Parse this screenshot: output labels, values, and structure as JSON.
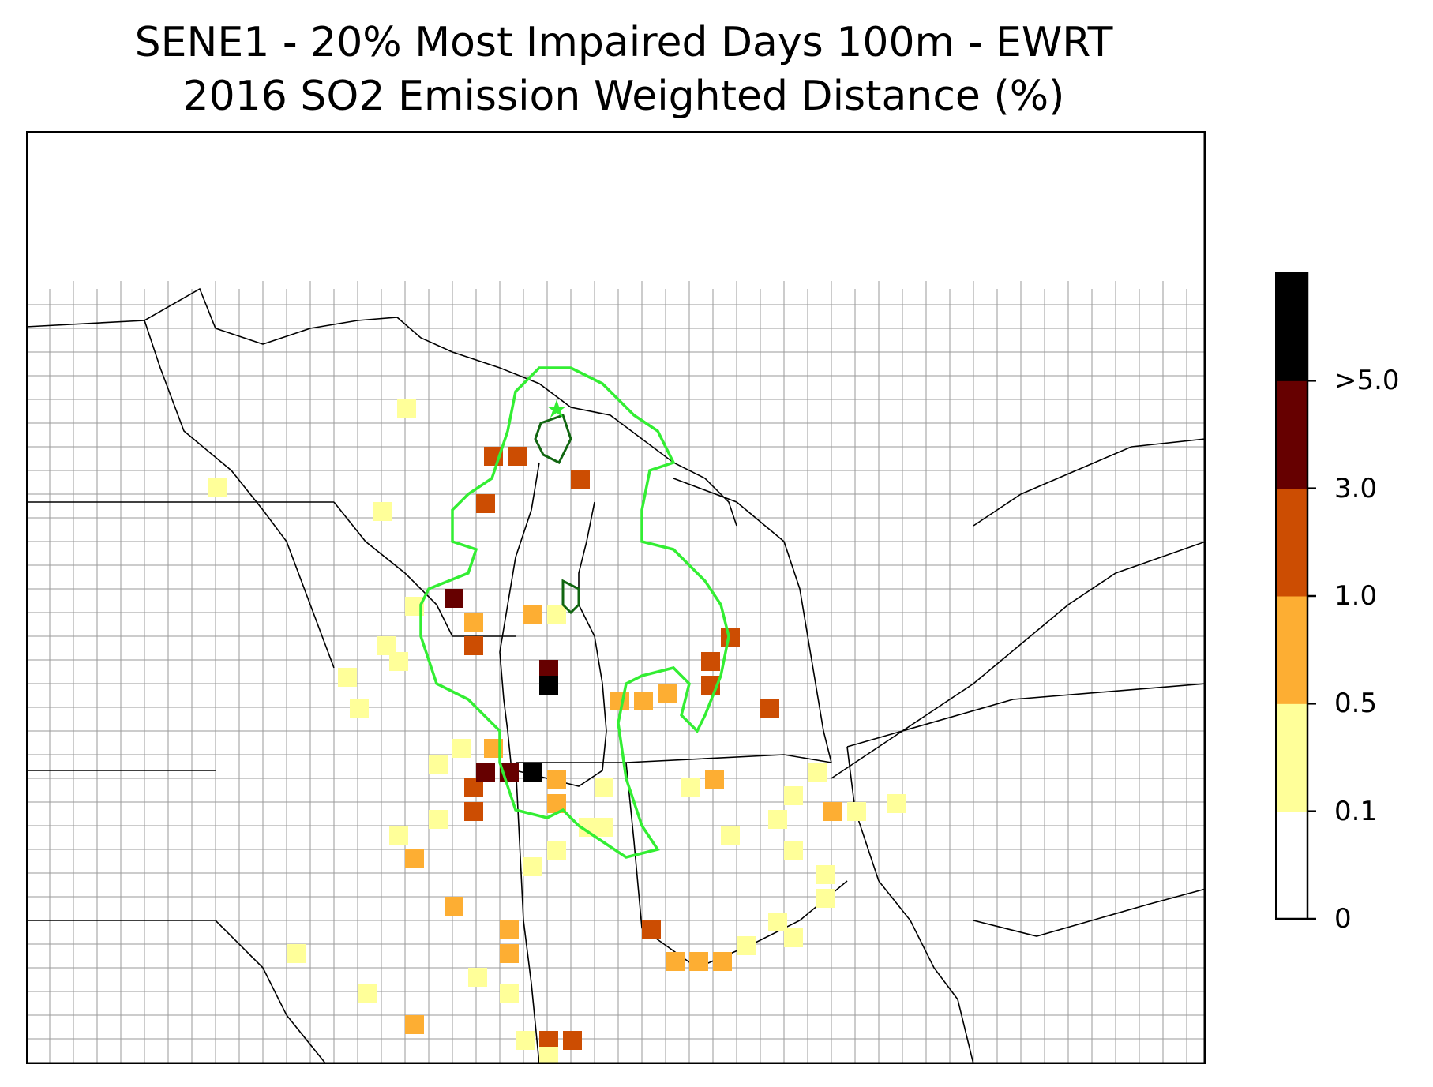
{
  "title": {
    "line1": "SENE1 - 20% Most Impaired Days 100m - EWRT",
    "line2": "2016 SO2 Emission Weighted Distance (%)"
  },
  "colorbar": {
    "colors": [
      "#ffffff",
      "#ffff99",
      "#fdae33",
      "#cc4d02",
      "#660000",
      "#000000"
    ],
    "tick_labels": [
      "0",
      "0.1",
      "0.5",
      "1.0",
      "3.0",
      ">5.0"
    ]
  },
  "map": {
    "background": "#ffffff",
    "state_border_color": "#000000",
    "county_border_color": "#9a9a9a",
    "contour_outer_color": "#33ee33",
    "contour_inner_color": "#116611",
    "site_marker_icon": "star-icon",
    "site_marker_color": "#33ee33"
  }
}
